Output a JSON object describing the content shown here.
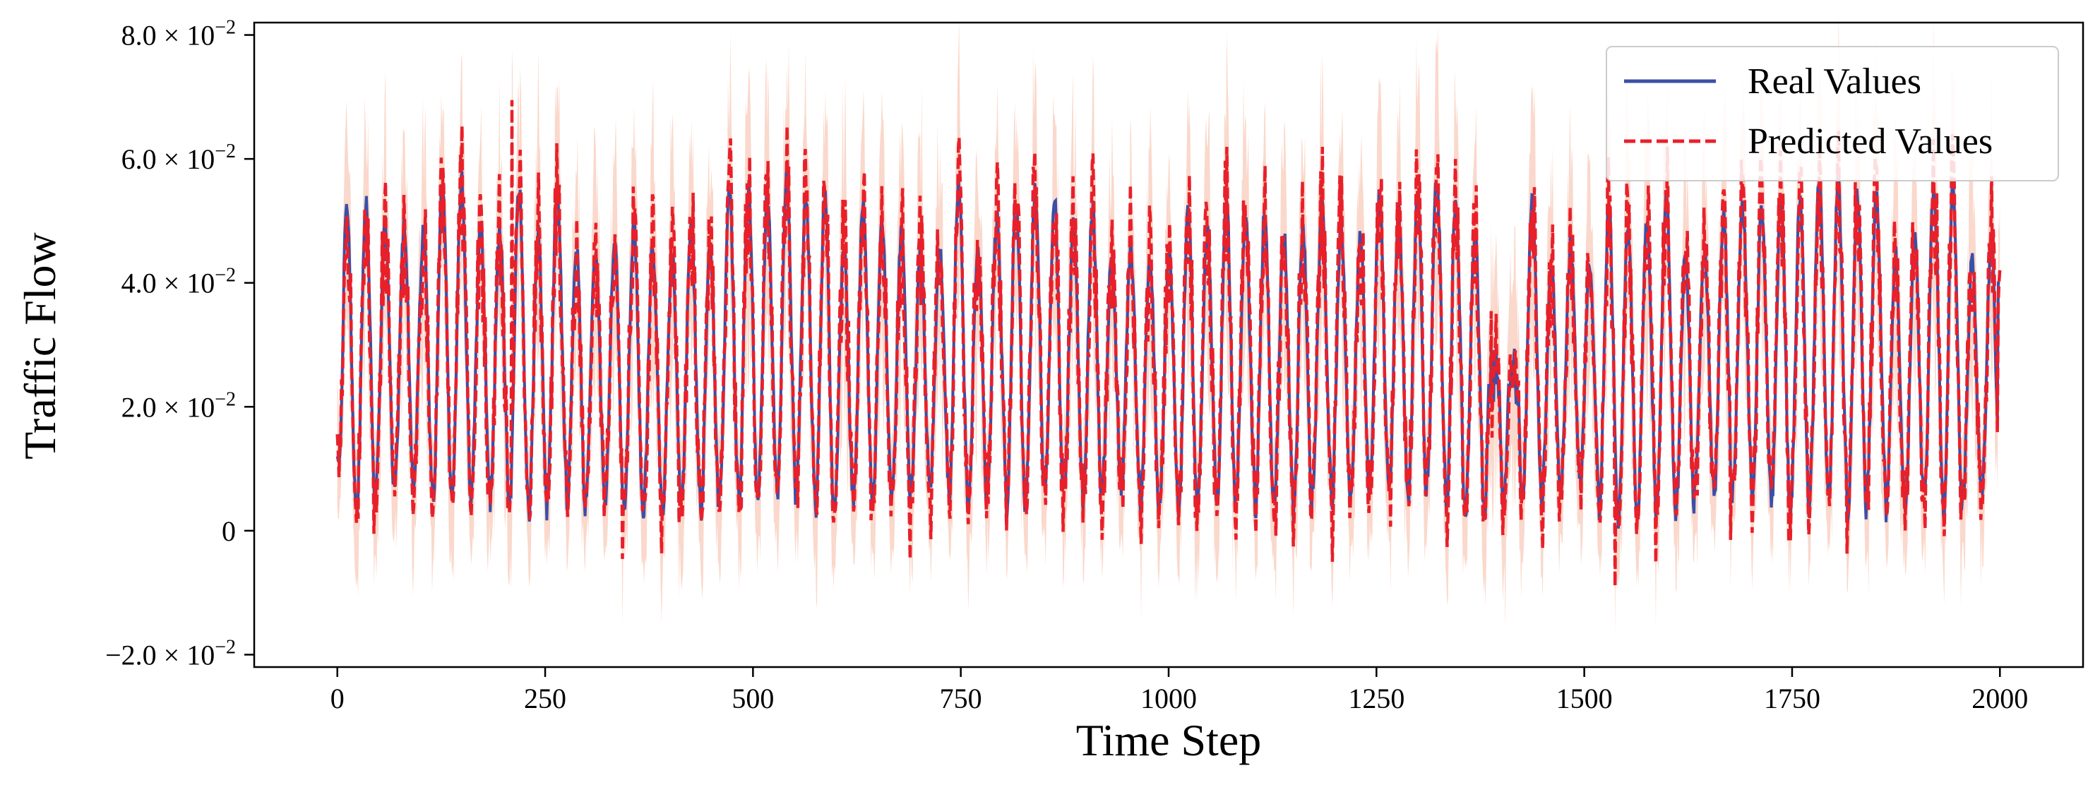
{
  "chart_data": {
    "type": "line",
    "title": "",
    "xlabel": "Time Step",
    "ylabel": "Traffic Flow",
    "xlim": [
      -100,
      2100
    ],
    "ylim": [
      -0.022,
      0.082
    ],
    "x_ticks": [
      0,
      250,
      500,
      750,
      1000,
      1250,
      1500,
      1750,
      2000
    ],
    "x_tick_labels": [
      "0",
      "250",
      "500",
      "750",
      "1000",
      "1250",
      "1500",
      "1750",
      "2000"
    ],
    "y_ticks": [
      -0.02,
      0,
      0.02,
      0.04,
      0.06,
      0.08
    ],
    "y_tick_labels": [
      {
        "mantissa": "−2.0",
        "base": "× 10",
        "exp": "−2"
      },
      {
        "mantissa": "0",
        "base": "",
        "exp": ""
      },
      {
        "mantissa": "2.0",
        "base": "× 10",
        "exp": "−2"
      },
      {
        "mantissa": "4.0",
        "base": "× 10",
        "exp": "−2"
      },
      {
        "mantissa": "6.0",
        "base": "× 10",
        "exp": "−2"
      },
      {
        "mantissa": "8.0",
        "base": "× 10",
        "exp": "−2"
      }
    ],
    "grid": false,
    "legend_position": "top-right",
    "colors": {
      "real": "#3a4fa8",
      "predicted": "#e8202a",
      "band": "#f6b8a0"
    },
    "series": [
      {
        "name": "Real Values",
        "style": "solid",
        "color": "#3a4fa8"
      },
      {
        "name": "Predicted Values",
        "style": "dashed",
        "color": "#e8202a"
      }
    ],
    "x_range": [
      0,
      2000
    ],
    "cycle_length": 23,
    "typical_min": 0.003,
    "typical_max": 0.055,
    "observed_max": 0.0695,
    "observed_min": -0.009,
    "band_max": 0.078,
    "band_min": -0.017,
    "start_value": 0.012,
    "end_value": 0.04
  }
}
